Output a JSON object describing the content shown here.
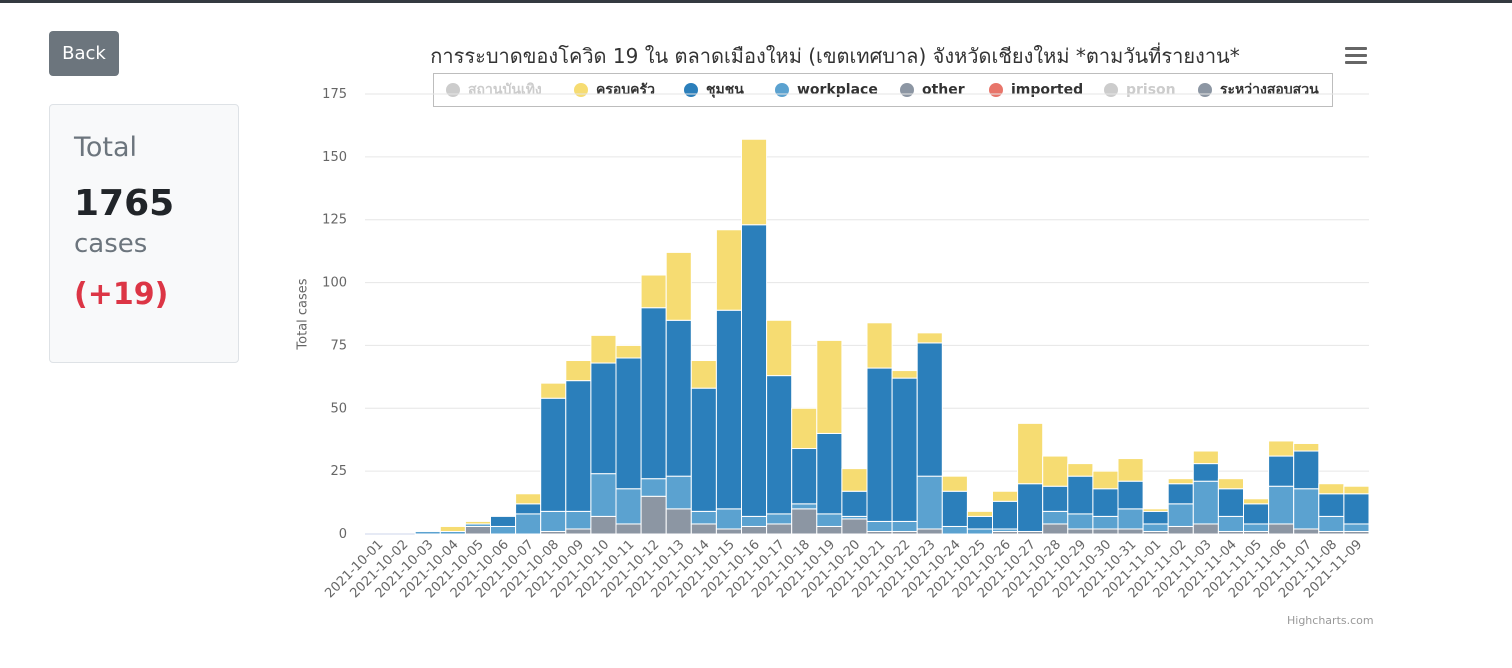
{
  "back_button": {
    "label": "Back"
  },
  "summary": {
    "title": "Total",
    "count": "1765",
    "unit": "cases",
    "delta": "(+19)"
  },
  "credits": "Highcharts.com",
  "menu_icon": "hamburger-menu-icon",
  "chart_data": {
    "type": "bar",
    "stacked": true,
    "title": "การระบาดของโควิด 19 ใน ตลาดเมืองใหม่ (เขตเทศบาล) จังหวัดเชียงใหม่ *ตามวันที่รายงาน*",
    "xlabel": "",
    "ylabel": "Total cases",
    "ylim": [
      0,
      175
    ],
    "yticks": [
      0,
      25,
      50,
      75,
      100,
      125,
      150,
      175
    ],
    "grid": true,
    "legend_position": "top",
    "categories": [
      "2021-10-01",
      "2021-10-02",
      "2021-10-03",
      "2021-10-04",
      "2021-10-05",
      "2021-10-06",
      "2021-10-07",
      "2021-10-08",
      "2021-10-09",
      "2021-10-10",
      "2021-10-11",
      "2021-10-12",
      "2021-10-13",
      "2021-10-14",
      "2021-10-15",
      "2021-10-16",
      "2021-10-17",
      "2021-10-18",
      "2021-10-19",
      "2021-10-20",
      "2021-10-21",
      "2021-10-22",
      "2021-10-23",
      "2021-10-24",
      "2021-10-25",
      "2021-10-26",
      "2021-10-27",
      "2021-10-28",
      "2021-10-29",
      "2021-10-30",
      "2021-10-31",
      "2021-11-01",
      "2021-11-02",
      "2021-11-03",
      "2021-11-04",
      "2021-11-05",
      "2021-11-06",
      "2021-11-07",
      "2021-11-08",
      "2021-11-09"
    ],
    "series": [
      {
        "name": "สถานบันเทิง",
        "color": "#cccccc",
        "visible": false,
        "values": [
          0,
          0,
          0,
          0,
          0,
          0,
          0,
          0,
          0,
          0,
          0,
          0,
          0,
          0,
          0,
          0,
          0,
          0,
          0,
          0,
          0,
          0,
          0,
          0,
          0,
          0,
          0,
          0,
          0,
          0,
          0,
          0,
          0,
          0,
          0,
          0,
          0,
          0,
          0,
          0
        ]
      },
      {
        "name": "other",
        "color": "#8c96a3",
        "visible": true,
        "values": [
          0,
          0,
          0,
          0,
          3,
          0,
          0,
          1,
          2,
          7,
          4,
          15,
          10,
          4,
          2,
          3,
          4,
          10,
          3,
          6,
          1,
          1,
          2,
          0,
          0,
          1,
          1,
          4,
          2,
          2,
          2,
          1,
          3,
          4,
          1,
          1,
          4,
          2,
          1,
          1
        ]
      },
      {
        "name": "ระหว่างสอบสวน",
        "color": "#8c96a3",
        "visible": true,
        "values": [
          0,
          0,
          0,
          0,
          0,
          0,
          0,
          0,
          0,
          0,
          0,
          0,
          0,
          0,
          0,
          0,
          0,
          0,
          0,
          0,
          0,
          0,
          0,
          0,
          0,
          0,
          0,
          0,
          0,
          0,
          0,
          0,
          0,
          0,
          0,
          0,
          0,
          0,
          0,
          0
        ]
      },
      {
        "name": "workplace",
        "color": "#5ba2d0",
        "visible": true,
        "values": [
          0,
          0,
          1,
          1,
          1,
          3,
          8,
          8,
          7,
          17,
          14,
          7,
          13,
          5,
          8,
          4,
          4,
          2,
          5,
          1,
          4,
          4,
          21,
          3,
          2,
          1,
          0,
          5,
          6,
          5,
          8,
          3,
          9,
          17,
          6,
          3,
          15,
          16,
          6,
          3
        ]
      },
      {
        "name": "imported",
        "color": "#e8756a",
        "visible": true,
        "values": [
          0,
          0,
          0,
          0,
          0,
          0,
          0,
          0,
          0,
          0,
          0,
          0,
          0,
          0,
          0,
          0,
          0,
          0,
          0,
          0,
          0,
          0,
          0,
          0,
          0,
          0,
          0,
          0,
          0,
          0,
          0,
          0,
          0,
          0,
          0,
          0,
          0,
          0,
          0,
          0
        ]
      },
      {
        "name": "prison",
        "color": "#cccccc",
        "visible": false,
        "values": [
          0,
          0,
          0,
          0,
          0,
          0,
          0,
          0,
          0,
          0,
          0,
          0,
          0,
          0,
          0,
          0,
          0,
          0,
          0,
          0,
          0,
          0,
          0,
          0,
          0,
          0,
          0,
          0,
          0,
          0,
          0,
          0,
          0,
          0,
          0,
          0,
          0,
          0,
          0,
          0
        ]
      },
      {
        "name": "ชุมชน",
        "color": "#2b7fbb",
        "visible": true,
        "values": [
          0,
          0,
          0,
          0,
          0,
          4,
          4,
          45,
          52,
          44,
          52,
          68,
          62,
          49,
          79,
          116,
          55,
          22,
          32,
          10,
          61,
          57,
          53,
          14,
          5,
          11,
          19,
          10,
          15,
          11,
          11,
          5,
          8,
          7,
          11,
          8,
          12,
          15,
          9,
          12
        ]
      },
      {
        "name": "ครอบครัว",
        "color": "#f6dc72",
        "visible": true,
        "values": [
          0,
          0,
          0,
          2,
          1,
          0,
          4,
          6,
          8,
          11,
          5,
          13,
          27,
          11,
          32,
          34,
          22,
          16,
          37,
          9,
          18,
          3,
          4,
          6,
          2,
          4,
          24,
          12,
          5,
          7,
          9,
          1,
          2,
          5,
          4,
          2,
          6,
          3,
          4,
          3
        ]
      }
    ]
  },
  "legend_items": [
    {
      "name": "สถานบันเทิง",
      "color": "#cccccc",
      "visible": false
    },
    {
      "name": "ครอบครัว",
      "color": "#f6dc72",
      "visible": true
    },
    {
      "name": "ชุมชน",
      "color": "#2b7fbb",
      "visible": true
    },
    {
      "name": "workplace",
      "color": "#5ba2d0",
      "visible": true
    },
    {
      "name": "other",
      "color": "#8c96a3",
      "visible": true
    },
    {
      "name": "imported",
      "color": "#e8756a",
      "visible": true
    },
    {
      "name": "prison",
      "color": "#cccccc",
      "visible": false
    },
    {
      "name": "ระหว่างสอบสวน",
      "color": "#8c96a3",
      "visible": true
    }
  ]
}
